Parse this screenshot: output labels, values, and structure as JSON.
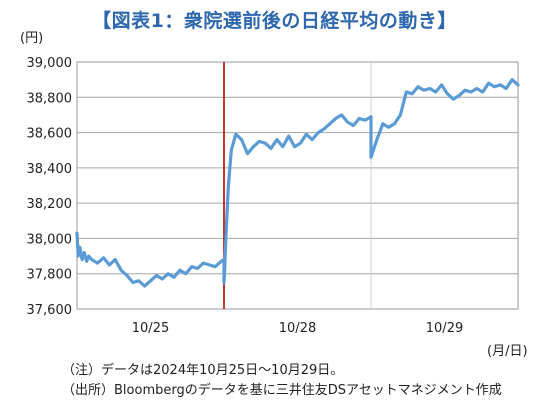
{
  "header": {
    "title": "【図表1：衆院選前後の日経平均の動き】"
  },
  "chart_data": {
    "type": "line",
    "title": "【図表1：衆院選前後の日経平均の動き】",
    "ylabel": "(円)",
    "xlabel": "(月/日)",
    "ylim": [
      37600,
      39000
    ],
    "yticks": [
      37600,
      37800,
      38000,
      38200,
      38400,
      38600,
      38800,
      39000
    ],
    "ytick_labels": [
      "37,600",
      "37,800",
      "38,000",
      "38,200",
      "38,400",
      "38,600",
      "38,800",
      "39,000"
    ],
    "day_labels": [
      "10/25",
      "10/28",
      "10/29"
    ],
    "grid": true,
    "marker_line": {
      "position": "between 10/25 and 10/28",
      "color": "#c00000"
    },
    "series": [
      {
        "color": "#5b9bd5",
        "x": [
          0,
          0.08,
          0.2,
          0.35,
          0.5,
          0.65,
          0.8,
          1.0,
          1.4,
          1.8,
          2.2,
          2.6,
          3.0,
          3.4,
          3.8,
          4.2,
          4.6,
          5.0,
          5.4,
          5.8,
          6.2,
          6.6,
          7.0,
          7.4,
          7.8,
          8.2,
          8.6,
          9.0,
          9.4,
          9.8,
          10.0,
          10.0,
          10.05,
          10.15,
          10.3,
          10.5,
          10.8,
          11.2,
          11.6,
          12.0,
          12.4,
          12.8,
          13.2,
          13.6,
          14.0,
          14.4,
          14.8,
          15.2,
          15.6,
          16.0,
          16.4,
          16.8,
          17.2,
          17.6,
          18.0,
          18.4,
          18.8,
          19.2,
          19.6,
          20.0,
          20.0,
          20.4,
          20.8,
          21.2,
          21.6,
          22.0,
          22.4,
          22.8,
          23.2,
          23.6,
          24.0,
          24.4,
          24.8,
          25.2,
          25.6,
          26.0,
          26.4,
          26.8,
          27.2,
          27.6,
          28.0,
          28.4,
          28.8,
          29.2,
          29.6,
          30.0
        ],
        "y": [
          38030,
          37900,
          37950,
          37880,
          37920,
          37870,
          37900,
          37880,
          37860,
          37890,
          37850,
          37880,
          37820,
          37790,
          37750,
          37760,
          37730,
          37760,
          37790,
          37770,
          37800,
          37780,
          37820,
          37800,
          37840,
          37830,
          37860,
          37850,
          37840,
          37870,
          37880,
          37750,
          37830,
          38050,
          38300,
          38500,
          38590,
          38560,
          38480,
          38520,
          38550,
          38540,
          38510,
          38560,
          38520,
          38580,
          38520,
          38540,
          38590,
          38560,
          38600,
          38620,
          38650,
          38680,
          38700,
          38660,
          38640,
          38680,
          38670,
          38690,
          38460,
          38560,
          38650,
          38630,
          38650,
          38700,
          38830,
          38820,
          38860,
          38840,
          38850,
          38830,
          38870,
          38820,
          38790,
          38810,
          38840,
          38830,
          38850,
          38830,
          38880,
          38860,
          38870,
          38850,
          38900,
          38870
        ]
      }
    ]
  },
  "footnotes": {
    "note": "（注）データは2024年10月25日～10月29日。",
    "source": "（出所）Bloombergのデータを基に三井住友DSアセットマネジメント作成"
  }
}
